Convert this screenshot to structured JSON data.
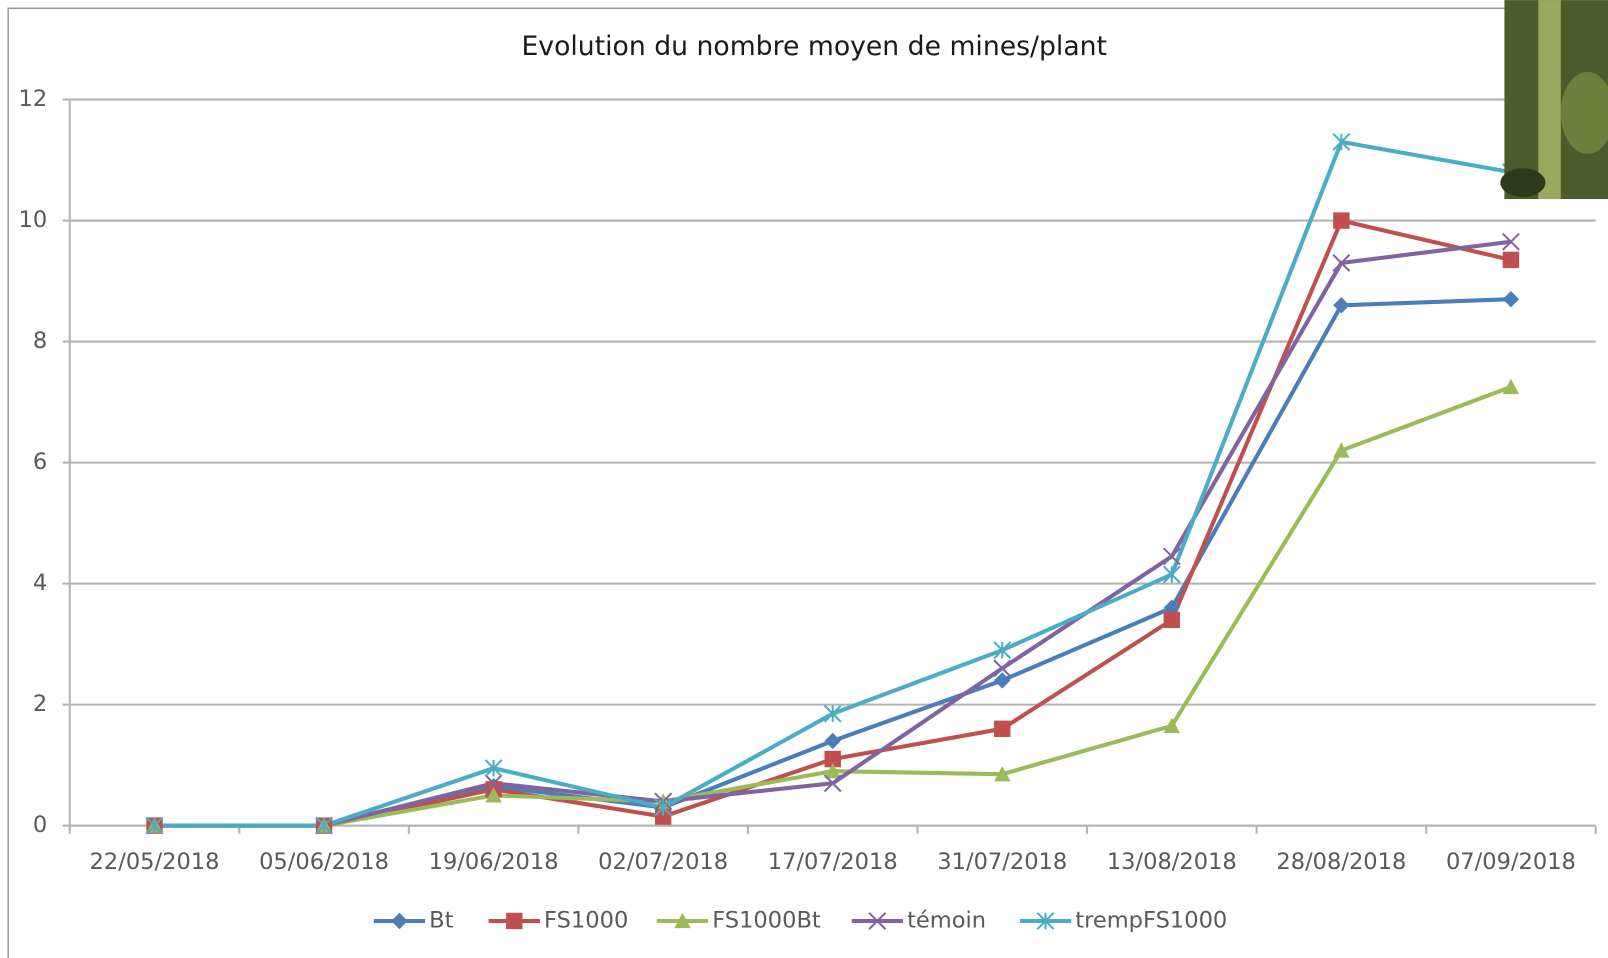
{
  "chart_data": {
    "type": "line",
    "title": "Evolution du nombre moyen de mines/plant",
    "categories": [
      "22/05/2018",
      "05/06/2018",
      "19/06/2018",
      "02/07/2018",
      "17/07/2018",
      "31/07/2018",
      "13/08/2018",
      "28/08/2018",
      "07/09/2018"
    ],
    "series": [
      {
        "name": "Bt",
        "color": "#4a7ebb",
        "marker": "diamond",
        "values": [
          0,
          0,
          0.65,
          0.3,
          1.4,
          2.4,
          3.6,
          8.6,
          8.7
        ]
      },
      {
        "name": "FS1000",
        "color": "#c0504d",
        "marker": "square",
        "values": [
          0,
          0,
          0.6,
          0.15,
          1.1,
          1.6,
          3.4,
          10,
          9.35
        ]
      },
      {
        "name": "FS1000Bt",
        "color": "#9bbb59",
        "marker": "triangle",
        "values": [
          0,
          0,
          0.5,
          0.4,
          0.9,
          0.85,
          1.65,
          6.2,
          7.25
        ]
      },
      {
        "name": "témoin",
        "color": "#8064a2",
        "marker": "x",
        "values": [
          0,
          0,
          0.7,
          0.4,
          0.7,
          2.6,
          4.45,
          9.3,
          9.65
        ]
      },
      {
        "name": "trempFS1000",
        "color": "#4bacc6",
        "marker": "star",
        "values": [
          0,
          0,
          0.95,
          0.3,
          1.85,
          2.9,
          4.15,
          11.3,
          10.8
        ]
      }
    ],
    "ylim": [
      0,
      12
    ],
    "yticks": [
      0,
      2,
      4,
      6,
      8,
      10,
      12
    ],
    "grid": true,
    "legend": "bottom"
  }
}
